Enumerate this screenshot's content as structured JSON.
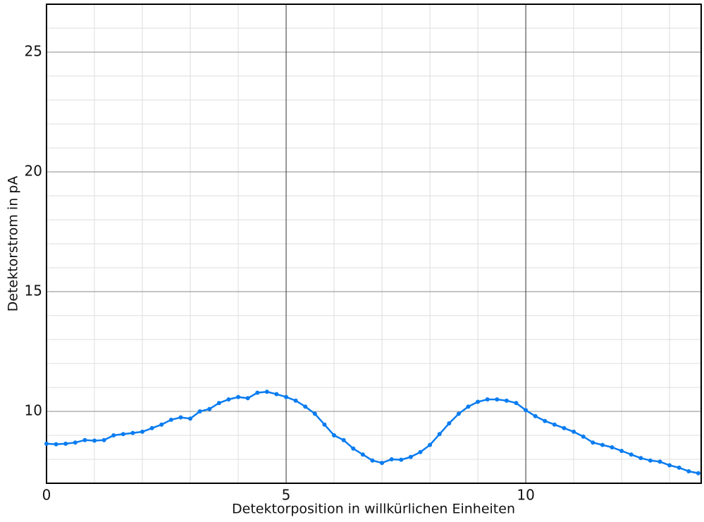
{
  "chart_data": {
    "type": "line",
    "x_label": "Detektorposition in willkürlichen Einheiten",
    "y_label": "Detektorstrom in pA",
    "x": [
      0,
      0.2,
      0.4,
      0.6,
      0.8,
      1.0,
      1.2,
      1.4,
      1.6,
      1.8,
      2.0,
      2.2,
      2.4,
      2.6,
      2.8,
      3.0,
      3.2,
      3.4,
      3.6,
      3.8,
      4.0,
      4.2,
      4.4,
      4.6,
      4.8,
      5.0,
      5.2,
      5.4,
      5.6,
      5.8,
      6.0,
      6.2,
      6.4,
      6.6,
      6.8,
      7.0,
      7.2,
      7.4,
      7.6,
      7.8,
      8.0,
      8.2,
      8.4,
      8.6,
      8.8,
      9.0,
      9.2,
      9.4,
      9.6,
      9.8,
      10.0,
      10.2,
      10.4,
      10.6,
      10.8,
      11.0,
      11.2,
      11.4,
      11.6,
      11.8,
      12.0,
      12.2,
      12.4,
      12.6,
      12.8,
      13.0,
      13.2,
      13.4,
      13.6
    ],
    "series": [
      {
        "color": "#0a7cf0",
        "values": [
          8.65,
          8.63,
          8.65,
          8.7,
          8.8,
          8.78,
          8.8,
          9.0,
          9.05,
          9.1,
          9.15,
          9.3,
          9.45,
          9.65,
          9.75,
          9.7,
          10.0,
          10.1,
          10.35,
          10.5,
          10.6,
          10.55,
          10.78,
          10.82,
          10.72,
          10.6,
          10.45,
          10.2,
          9.9,
          9.45,
          9.0,
          8.8,
          8.45,
          8.2,
          7.95,
          7.85,
          8.0,
          7.98,
          8.1,
          8.3,
          8.6,
          9.05,
          9.5,
          9.9,
          10.2,
          10.4,
          10.5,
          10.5,
          10.45,
          10.35,
          10.05,
          9.8,
          9.6,
          9.45,
          9.3,
          9.15,
          8.95,
          8.7,
          8.6,
          8.5,
          8.35,
          8.2,
          8.05,
          7.95,
          7.9,
          7.75,
          7.65,
          7.5,
          7.42
        ]
      }
    ],
    "xlim": [
      0,
      13.66
    ],
    "ylim": [
      7,
      27
    ],
    "xticks": [
      0,
      5,
      10
    ],
    "yticks": [
      10,
      15,
      20,
      25
    ],
    "xticks_minor": [
      1,
      2,
      3,
      4,
      6,
      7,
      8,
      9,
      11,
      12,
      13
    ],
    "yticks_minor": [
      8,
      9,
      11,
      12,
      13,
      14,
      16,
      17,
      18,
      19,
      21,
      22,
      23,
      24,
      26
    ],
    "grid": true
  }
}
